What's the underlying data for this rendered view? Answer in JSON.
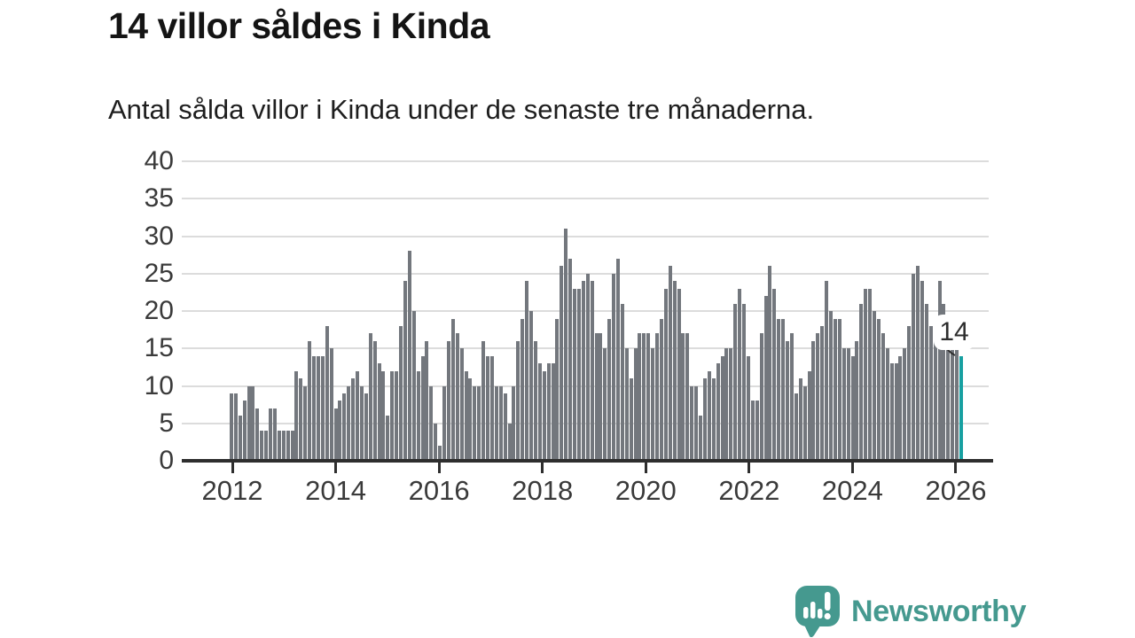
{
  "header": {
    "title": "14 villor såldes i Kinda",
    "subtitle": "Antal sålda villor i Kinda under de senaste tre månaderna."
  },
  "chart_data": {
    "type": "bar",
    "title": "14 villor såldes i Kinda",
    "subtitle": "Antal sålda villor i Kinda under de senaste tre månaderna.",
    "xlabel": "",
    "ylabel": "",
    "ylim": [
      0,
      40
    ],
    "yticks": [
      0,
      5,
      10,
      15,
      20,
      25,
      30,
      35,
      40
    ],
    "xticks": [
      "2012",
      "2014",
      "2016",
      "2018",
      "2020",
      "2022",
      "2024",
      "2026"
    ],
    "x_start": "2012",
    "frequency": "monthly-rolling-3-month-sum",
    "grid": true,
    "bar_color": "#73777d",
    "highlight_color": "#17a0a1",
    "highlight_last": true,
    "last_value_label": "14",
    "values": [
      9,
      9,
      6,
      8,
      10,
      10,
      7,
      4,
      4,
      7,
      7,
      4,
      4,
      4,
      4,
      12,
      11,
      10,
      16,
      14,
      14,
      14,
      18,
      15,
      7,
      8,
      9,
      10,
      11,
      12,
      10,
      9,
      17,
      16,
      13,
      12,
      6,
      12,
      12,
      18,
      24,
      28,
      20,
      12,
      14,
      16,
      10,
      5,
      2,
      10,
      16,
      19,
      17,
      15,
      12,
      11,
      10,
      10,
      16,
      14,
      14,
      10,
      10,
      9,
      5,
      10,
      16,
      19,
      24,
      20,
      16,
      13,
      12,
      13,
      13,
      19,
      26,
      31,
      27,
      23,
      23,
      24,
      25,
      24,
      17,
      17,
      15,
      19,
      25,
      27,
      21,
      15,
      11,
      15,
      17,
      17,
      17,
      15,
      17,
      19,
      23,
      26,
      24,
      23,
      17,
      17,
      10,
      10,
      6,
      11,
      12,
      11,
      13,
      14,
      15,
      15,
      21,
      23,
      21,
      14,
      8,
      8,
      17,
      22,
      26,
      23,
      19,
      19,
      16,
      17,
      9,
      11,
      10,
      12,
      16,
      17,
      18,
      24,
      20,
      19,
      19,
      15,
      15,
      14,
      16,
      21,
      23,
      23,
      20,
      19,
      17,
      15,
      13,
      13,
      14,
      15,
      18,
      25,
      26,
      24,
      21,
      18,
      17,
      24,
      21,
      17,
      16,
      15,
      14
    ]
  },
  "annotation": {
    "text": "14"
  },
  "footer": {
    "brand": "Newsworthy",
    "brand_color": "#45998f",
    "logo_icon": "newsworthy-speech-bubble-chart-icon"
  }
}
